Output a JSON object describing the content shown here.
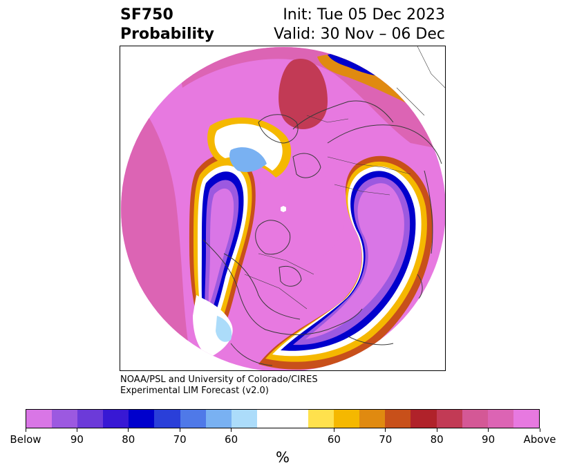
{
  "header": {
    "variable": "SF750",
    "product": "Probability",
    "init": "Init: Tue 05 Dec 2023",
    "valid": "Valid: 30 Nov – 06 Dec"
  },
  "credit": {
    "line1": "NOAA/PSL and University of Colorado/CIRES",
    "line2": "Experimental LIM Forecast (v2.0)"
  },
  "colorbar": {
    "unit": "%",
    "below_colors": [
      "#d976e6",
      "#9c59e0",
      "#6c3ad9",
      "#3818d4",
      "#0000cc",
      "#2a3fd9",
      "#4f79e8",
      "#79b1f2",
      "#acdcfa"
    ],
    "neutral_color": "#ffffff",
    "above_colors": [
      "#ffe14d",
      "#f5b800",
      "#e08a10",
      "#c8501a",
      "#b0222a",
      "#c23a55",
      "#d45896",
      "#dc64b4",
      "#e779e0"
    ],
    "labels": [
      "Below",
      "90",
      "80",
      "70",
      "60",
      "60",
      "70",
      "80",
      "90",
      "Above"
    ]
  },
  "map": {
    "projection": "north-polar-stereographic",
    "legend_word_below": "Below",
    "legend_word_above": "Above"
  }
}
